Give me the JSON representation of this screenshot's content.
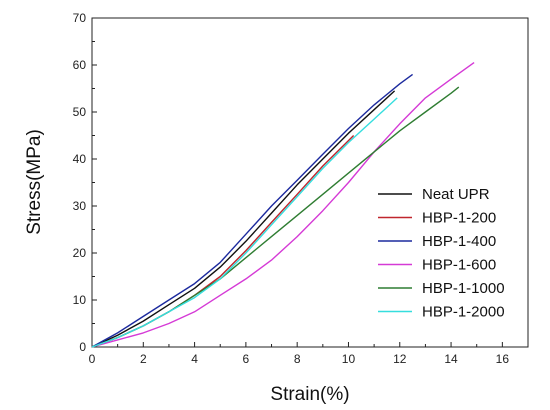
{
  "chart_data": {
    "type": "line",
    "title": "",
    "xlabel": "Strain(%)",
    "ylabel": "Stress(MPa)",
    "xlim": [
      0,
      17
    ],
    "ylim": [
      0,
      70
    ],
    "xticks": [
      "0",
      "2",
      "4",
      "6",
      "8",
      "10",
      "12",
      "14",
      "16"
    ],
    "yticks": [
      "0",
      "10",
      "20",
      "30",
      "40",
      "50",
      "60",
      "70"
    ],
    "grid": false,
    "legend_position": "right",
    "series": [
      {
        "name": "Neat UPR",
        "color": "#111111",
        "points": [
          [
            0,
            0
          ],
          [
            1,
            2.5
          ],
          [
            2,
            5.5
          ],
          [
            3,
            9
          ],
          [
            4,
            12.5
          ],
          [
            5,
            17
          ],
          [
            6,
            22.5
          ],
          [
            7,
            28.5
          ],
          [
            8,
            34.5
          ],
          [
            9,
            40
          ],
          [
            10,
            45.5
          ],
          [
            11,
            50.5
          ],
          [
            11.8,
            54.5
          ]
        ]
      },
      {
        "name": "HBP-1-200",
        "color": "#c0262d",
        "points": [
          [
            0,
            0
          ],
          [
            1,
            2
          ],
          [
            2,
            4.5
          ],
          [
            3,
            7.5
          ],
          [
            4,
            11
          ],
          [
            5,
            15
          ],
          [
            6,
            20.5
          ],
          [
            7,
            26.5
          ],
          [
            8,
            32.5
          ],
          [
            9,
            38.5
          ],
          [
            10.2,
            45
          ]
        ]
      },
      {
        "name": "HBP-1-400",
        "color": "#1c2a9e",
        "points": [
          [
            0,
            0
          ],
          [
            1,
            3
          ],
          [
            2,
            6.5
          ],
          [
            3,
            10
          ],
          [
            4,
            13.5
          ],
          [
            5,
            18
          ],
          [
            6,
            24
          ],
          [
            7,
            30
          ],
          [
            8,
            35.5
          ],
          [
            9,
            41
          ],
          [
            10,
            46.5
          ],
          [
            11,
            51.5
          ],
          [
            12,
            56
          ],
          [
            12.5,
            58
          ]
        ]
      },
      {
        "name": "HBP-1-600",
        "color": "#d53ad6",
        "points": [
          [
            0,
            0
          ],
          [
            1,
            1.5
          ],
          [
            2,
            3
          ],
          [
            3,
            5
          ],
          [
            4,
            7.5
          ],
          [
            5,
            11
          ],
          [
            6,
            14.5
          ],
          [
            7,
            18.5
          ],
          [
            8,
            23.5
          ],
          [
            9,
            29
          ],
          [
            10,
            35
          ],
          [
            11,
            41.5
          ],
          [
            12,
            47.5
          ],
          [
            13,
            53
          ],
          [
            14,
            57
          ],
          [
            14.9,
            60.5
          ]
        ]
      },
      {
        "name": "HBP-1-1000",
        "color": "#2f7d32",
        "points": [
          [
            0,
            0
          ],
          [
            1,
            2
          ],
          [
            2,
            4.5
          ],
          [
            3,
            7.5
          ],
          [
            4,
            11
          ],
          [
            5,
            14.5
          ],
          [
            6,
            19
          ],
          [
            7,
            23.5
          ],
          [
            8,
            28
          ],
          [
            9,
            32.5
          ],
          [
            10,
            37
          ],
          [
            11,
            41.5
          ],
          [
            12,
            46
          ],
          [
            13,
            50
          ],
          [
            14,
            54
          ],
          [
            14.3,
            55.3
          ]
        ]
      },
      {
        "name": "HBP-1-2000",
        "color": "#35dede",
        "points": [
          [
            0,
            0
          ],
          [
            1,
            2
          ],
          [
            2,
            4.5
          ],
          [
            3,
            7.5
          ],
          [
            4,
            10.5
          ],
          [
            5,
            14.5
          ],
          [
            6,
            20
          ],
          [
            7,
            26
          ],
          [
            8,
            32
          ],
          [
            9,
            38
          ],
          [
            10,
            43.5
          ],
          [
            11,
            48.5
          ],
          [
            11.9,
            53
          ]
        ]
      }
    ]
  }
}
